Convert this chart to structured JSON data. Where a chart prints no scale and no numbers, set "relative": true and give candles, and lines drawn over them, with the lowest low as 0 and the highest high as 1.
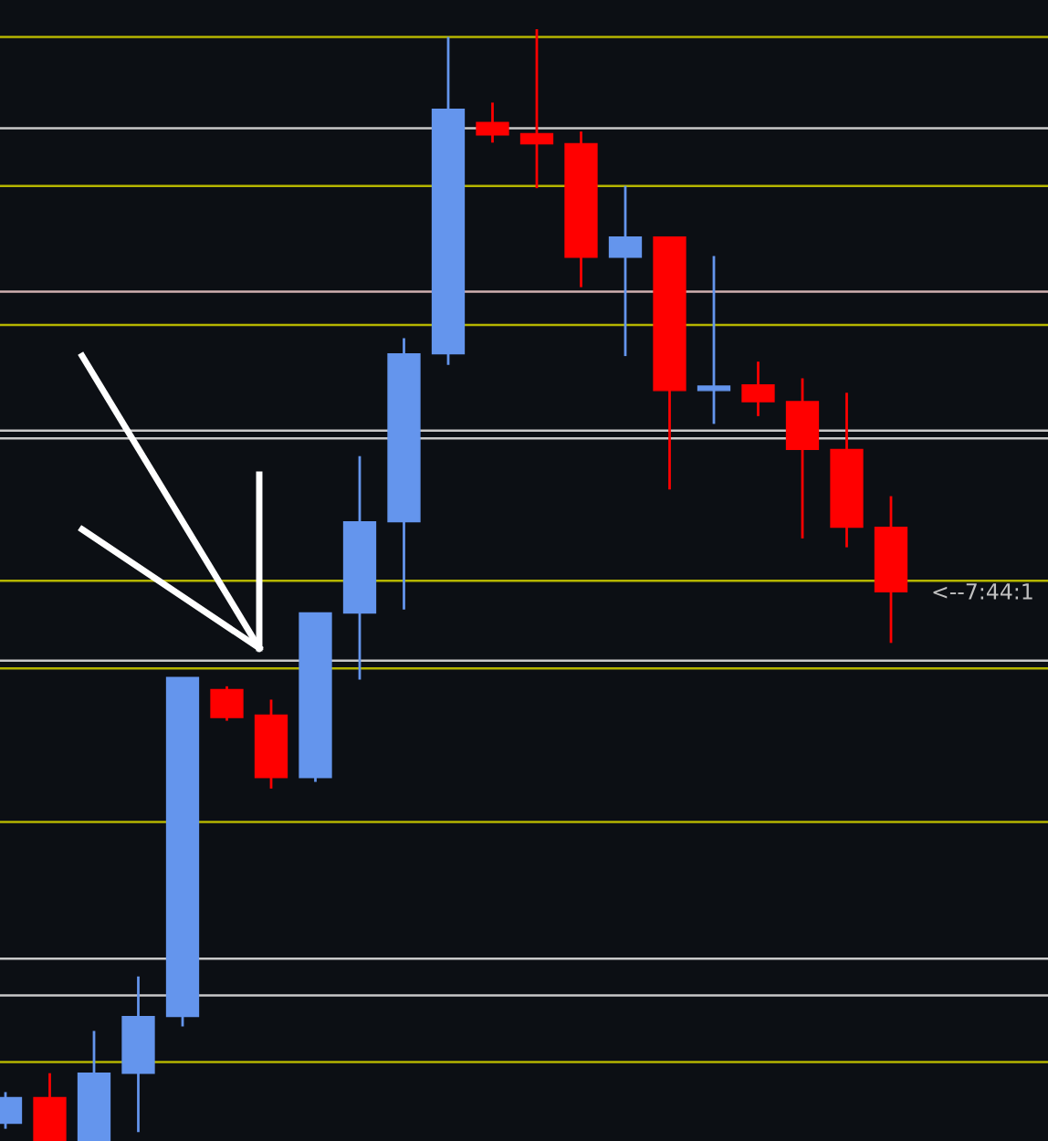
{
  "chart_data": {
    "type": "candlestick",
    "relative": true,
    "categories": [
      null,
      null,
      null,
      null,
      null,
      null,
      null,
      null,
      null,
      null,
      null,
      null,
      null,
      null,
      null,
      null,
      null,
      null,
      null,
      null,
      null
    ],
    "ohlc": [
      [
        0.016,
        0.044,
        0.011,
        0.039
      ],
      [
        0.039,
        0.061,
        0,
        0
      ],
      [
        0,
        0.099,
        0,
        0.061
      ],
      [
        0.061,
        0.148,
        0.008,
        0.112
      ],
      [
        0.112,
        0.417,
        0.103,
        0.417
      ],
      [
        0.406,
        0.409,
        0.378,
        0.381
      ],
      [
        0.383,
        0.397,
        0.317,
        0.327
      ],
      [
        0.327,
        0.475,
        0.323,
        0.475
      ],
      [
        0.475,
        0.616,
        0.415,
        0.557
      ],
      [
        0.557,
        0.722,
        0.478,
        0.708
      ],
      [
        0.708,
        0.993,
        0.698,
        0.928
      ],
      [
        0.916,
        0.934,
        0.898,
        0.905
      ],
      [
        0.906,
        1,
        0.857,
        0.897
      ],
      [
        0.897,
        0.908,
        0.768,
        0.795
      ],
      [
        0.795,
        0.859,
        0.706,
        0.813
      ],
      [
        0.813,
        0.813,
        0.586,
        0.675
      ],
      [
        0.675,
        0.796,
        0.645,
        0.678
      ],
      [
        0.68,
        0.701,
        0.652,
        0.665
      ],
      [
        0.665,
        0.686,
        0.542,
        0.622
      ],
      [
        0.622,
        0.673,
        0.534,
        0.552
      ],
      [
        0.552,
        0.58,
        0.448,
        0.494
      ]
    ],
    "colors": [
      "#6495ed",
      "#ff0000",
      "#6495ed",
      "#6495ed",
      "#6495ed",
      "#ff0000",
      "#ff0000",
      "#6495ed",
      "#6495ed",
      "#6495ed",
      "#6495ed",
      "#ff0000",
      "#ff0000",
      "#ff0000",
      "#6495ed",
      "#ff0000",
      "#6495ed",
      "#ff0000",
      "#ff0000",
      "#ff0000",
      "#ff0000"
    ],
    "ref_lines": [
      {
        "axis": "y",
        "value": 0.993,
        "color": "#b5b500"
      },
      {
        "axis": "y",
        "value": 0.859,
        "color": "#b5b500"
      },
      {
        "axis": "y",
        "value": 0.734,
        "color": "#b5b500"
      },
      {
        "axis": "y",
        "value": 0.504,
        "color": "#b5b500"
      },
      {
        "axis": "y",
        "value": 0.425,
        "color": "#b5b500"
      },
      {
        "axis": "y",
        "value": 0.287,
        "color": "#b5b500"
      },
      {
        "axis": "y",
        "value": 0.071,
        "color": "#b5b500"
      },
      {
        "axis": "y",
        "value": 0.911,
        "color": "#c8c8c8"
      },
      {
        "axis": "y",
        "value": 0.764,
        "color": "#d0b0b0"
      },
      {
        "axis": "y",
        "value": 0.639,
        "color": "#c8c8c8"
      },
      {
        "axis": "y",
        "value": 0.632,
        "color": "#c8c8c8"
      },
      {
        "axis": "y",
        "value": 0.432,
        "color": "#c8c8c8"
      },
      {
        "axis": "y",
        "value": 0.164,
        "color": "#c8c8c8"
      },
      {
        "axis": "y",
        "value": 0.131,
        "color": "#c8c8c8"
      }
    ],
    "annotations": [
      "<--7:44:1"
    ]
  }
}
